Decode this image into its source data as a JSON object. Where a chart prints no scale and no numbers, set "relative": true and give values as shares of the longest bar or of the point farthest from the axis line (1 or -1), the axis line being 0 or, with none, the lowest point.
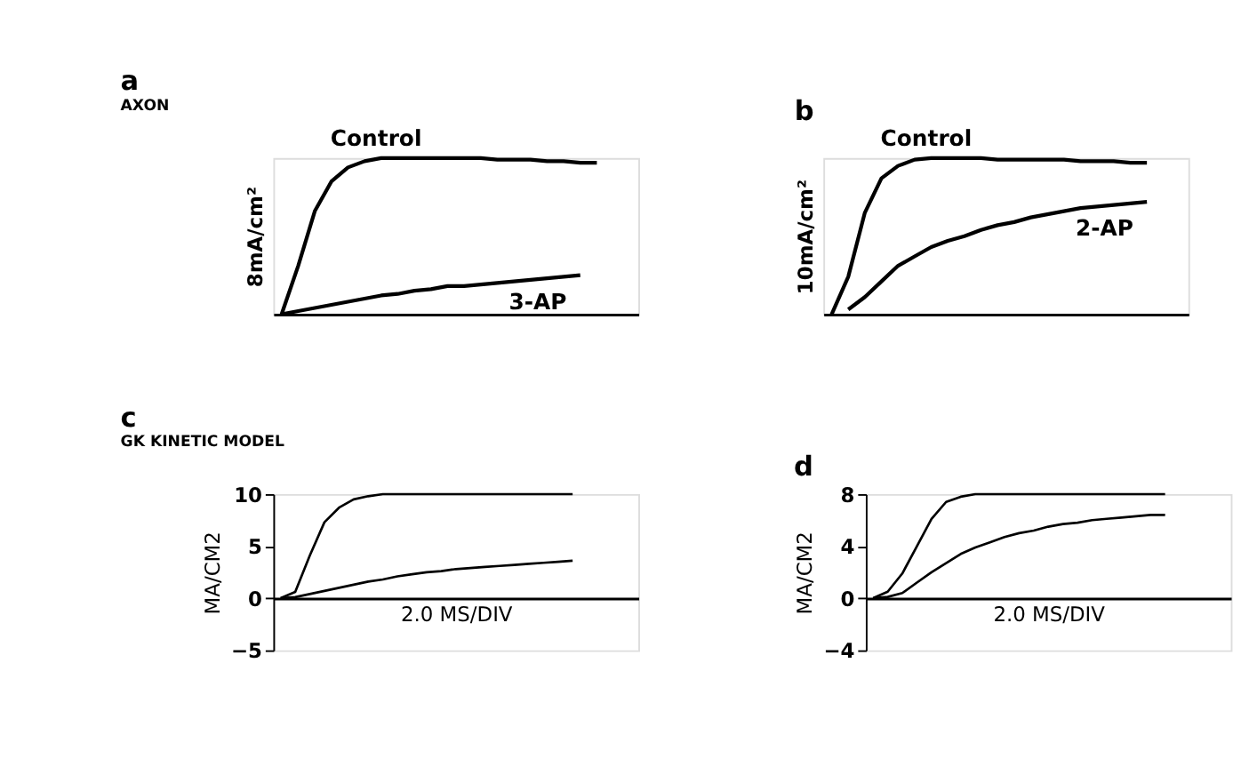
{
  "chart_data": [
    {
      "type": "line",
      "title": "a",
      "ylabel": "8mA/cm²",
      "relative": true,
      "tick_labels": false,
      "annotations": [
        "AXON"
      ],
      "categories": [
        null,
        null,
        null,
        null,
        null,
        null,
        null,
        null,
        null,
        null,
        null,
        null,
        null,
        null,
        null,
        null,
        null,
        null,
        null,
        null,
        null,
        null
      ],
      "series": [
        {
          "name": "Control",
          "color": "#000000",
          "values": [
            0,
            0.31,
            0.66,
            0.85,
            0.94,
            0.98,
            1.0,
            1.0,
            1.0,
            1.0,
            1.0,
            1.0,
            1.0,
            0.99,
            0.99,
            0.99,
            0.98,
            0.98,
            0.97,
            0.97,
            null,
            null
          ]
        },
        {
          "name": "3-AP",
          "color": "#000000",
          "values": [
            0,
            0.02,
            0.04,
            0.06,
            0.08,
            0.1,
            0.12,
            0.13,
            0.15,
            0.16,
            0.18,
            0.18,
            0.19,
            0.2,
            0.21,
            0.22,
            0.23,
            0.24,
            0.25,
            null,
            null,
            null
          ]
        }
      ]
    },
    {
      "type": "line",
      "title": "b",
      "ylabel": "10mA/cm²",
      "relative": true,
      "tick_labels": false,
      "categories": [
        null,
        null,
        null,
        null,
        null,
        null,
        null,
        null,
        null,
        null,
        null,
        null,
        null,
        null,
        null,
        null,
        null,
        null,
        null,
        null,
        null,
        null
      ],
      "series": [
        {
          "name": "Control",
          "color": "#000000",
          "values": [
            0,
            0.24,
            0.65,
            0.87,
            0.95,
            0.99,
            1.0,
            1.0,
            1.0,
            1.0,
            0.99,
            0.99,
            0.99,
            0.99,
            0.99,
            0.98,
            0.98,
            0.98,
            0.97,
            0.97,
            null,
            null
          ]
        },
        {
          "name": "2-AP",
          "color": "#000000",
          "values": [
            null,
            0.03,
            0.11,
            0.21,
            0.31,
            0.37,
            0.43,
            0.47,
            0.5,
            0.54,
            0.57,
            0.59,
            0.62,
            0.64,
            0.66,
            0.68,
            0.69,
            0.7,
            0.71,
            0.72,
            null,
            null
          ]
        }
      ]
    },
    {
      "type": "line",
      "title": "c",
      "ylabel": "MA/CM2",
      "xlabel": "2.0 MS/DIV",
      "tick_labels": "y",
      "annotations": [
        "GK KINETIC MODEL"
      ],
      "ylim": [
        -5,
        10
      ],
      "yticks": [
        -5,
        0,
        5,
        10
      ],
      "categories": [
        null,
        null,
        null,
        null,
        null,
        null,
        null,
        null,
        null,
        null,
        null,
        null,
        null,
        null,
        null,
        null,
        null,
        null,
        null,
        null,
        null,
        null,
        null,
        null,
        null
      ],
      "series": [
        {
          "color": "#000000",
          "values": [
            0,
            0.6,
            4.1,
            7.3,
            8.7,
            9.5,
            9.8,
            10,
            10,
            10,
            10,
            10,
            10,
            10,
            10,
            10,
            10,
            10,
            10,
            10,
            10,
            null,
            null,
            null,
            null
          ]
        },
        {
          "color": "#000000",
          "values": [
            0,
            0.1,
            0.4,
            0.7,
            1.0,
            1.3,
            1.6,
            1.8,
            2.1,
            2.3,
            2.5,
            2.6,
            2.8,
            2.9,
            3.0,
            3.1,
            3.2,
            3.3,
            3.4,
            3.5,
            3.6,
            null,
            null,
            null,
            null
          ]
        }
      ]
    },
    {
      "type": "line",
      "title": "d",
      "ylabel": "MA/CM2",
      "xlabel": "2.0 MS/DIV",
      "tick_labels": "y",
      "ylim": [
        -4,
        8
      ],
      "yticks": [
        -4,
        0,
        4,
        8
      ],
      "categories": [
        null,
        null,
        null,
        null,
        null,
        null,
        null,
        null,
        null,
        null,
        null,
        null,
        null,
        null,
        null,
        null,
        null,
        null,
        null,
        null,
        null,
        null,
        null,
        null,
        null
      ],
      "series": [
        {
          "color": "#000000",
          "values": [
            0,
            0.5,
            1.9,
            4.0,
            6.1,
            7.4,
            7.8,
            8.0,
            8.0,
            8.0,
            8.0,
            8.0,
            8.0,
            8.0,
            8.0,
            8.0,
            8.0,
            8.0,
            8.0,
            8.0,
            8.0,
            null,
            null,
            null,
            null
          ]
        },
        {
          "color": "#000000",
          "values": [
            0,
            0.1,
            0.4,
            1.2,
            2.0,
            2.7,
            3.4,
            3.9,
            4.3,
            4.7,
            5.0,
            5.2,
            5.5,
            5.7,
            5.8,
            6.0,
            6.1,
            6.2,
            6.3,
            6.4,
            6.4,
            null,
            null,
            null,
            null
          ]
        }
      ]
    }
  ]
}
